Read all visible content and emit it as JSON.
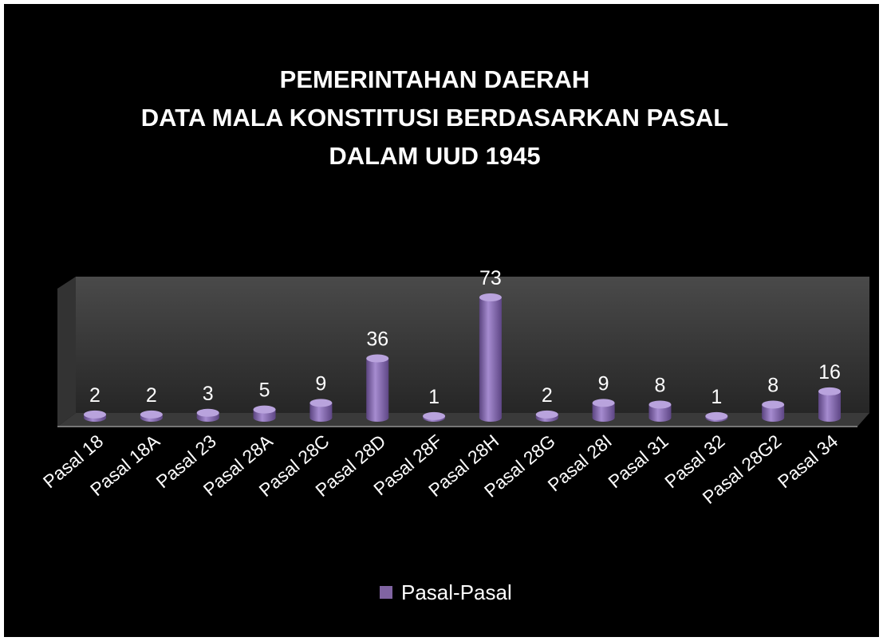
{
  "chart_data": {
    "type": "bar3d",
    "title": [
      "PEMERINTAHAN DAERAH",
      "DATA MALA KONSTITUSI BERDASARKAN PASAL",
      "DALAM UUD 1945"
    ],
    "categories": [
      "Pasal 18",
      "Pasal 18A",
      "Pasal 23",
      "Pasal 28A",
      "Pasal 28C",
      "Pasal 28D",
      "Pasal 28F",
      "Pasal 28H",
      "Pasal 28G",
      "Pasal 28I",
      "Pasal 31",
      "Pasal 32",
      "Pasal 28G2",
      "Pasal 34"
    ],
    "series": [
      {
        "name": "Pasal-Pasal",
        "color": "#8064a2",
        "values": [
          2,
          2,
          3,
          5,
          9,
          36,
          1,
          73,
          2,
          9,
          8,
          1,
          8,
          16
        ]
      }
    ],
    "legend": "bottom"
  }
}
